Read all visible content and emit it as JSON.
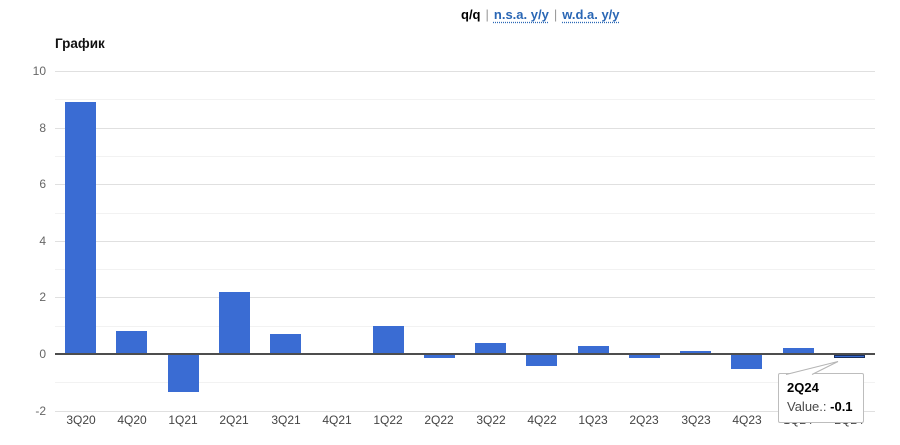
{
  "header": {
    "separator": "|",
    "links": [
      {
        "label": "q/q",
        "active": true
      },
      {
        "label": "n.s.a. y/y",
        "active": false
      },
      {
        "label": "w.d.a. y/y",
        "active": false
      }
    ]
  },
  "chart": {
    "title": "График"
  },
  "tooltip": {
    "title": "2Q24",
    "label": "Value.:",
    "value": "-0.1"
  },
  "colors": {
    "bar": "#3a6cd3",
    "link_blue": "#2a67b5",
    "gridline_major": "#e0e0e0",
    "gridline_minor": "#f2f2f2",
    "zero_line": "#4d4d4d",
    "tooltip_border": "#bdbdbd"
  },
  "chart_data": {
    "type": "bar",
    "title": "График",
    "xlabel": "",
    "ylabel": "",
    "categories": [
      "3Q20",
      "4Q20",
      "1Q21",
      "2Q21",
      "3Q21",
      "4Q21",
      "1Q22",
      "2Q22",
      "3Q22",
      "4Q22",
      "1Q23",
      "2Q23",
      "3Q23",
      "4Q23",
      "1Q24",
      "2Q24"
    ],
    "values": [
      8.9,
      0.8,
      -1.3,
      2.2,
      0.7,
      0.0,
      1.0,
      -0.1,
      0.4,
      -0.4,
      0.3,
      -0.1,
      0.1,
      -0.5,
      0.2,
      -0.1
    ],
    "ylim": [
      -2,
      10
    ],
    "yticks": [
      10,
      8,
      6,
      4,
      2,
      0,
      -2
    ],
    "grid": true,
    "legend": false,
    "bar_color": "#3a6cd3",
    "hovered_category": "2Q24",
    "hovered_value": -0.1
  }
}
